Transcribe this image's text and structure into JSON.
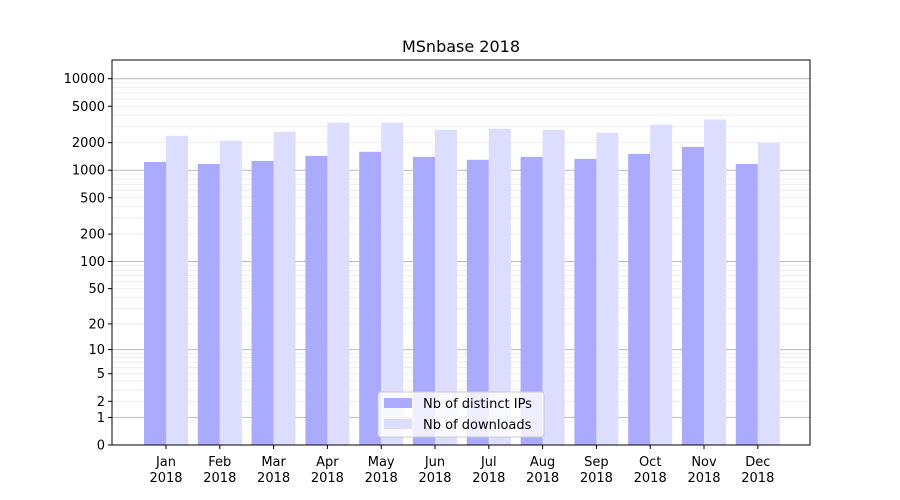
{
  "chart_data": {
    "type": "bar",
    "title": "MSnbase 2018",
    "xlabel": "",
    "ylabel": "",
    "yscale": "symlog (log10(1+y))",
    "ylim": [
      0,
      16000
    ],
    "grid": true,
    "legend_placement": "bottom-center",
    "categories": [
      "Jan\n2018",
      "Feb\n2018",
      "Mar\n2018",
      "Apr\n2018",
      "May\n2018",
      "Jun\n2018",
      "Jul\n2018",
      "Aug\n2018",
      "Sep\n2018",
      "Oct\n2018",
      "Nov\n2018",
      "Dec\n2018"
    ],
    "y_ticks": [
      0,
      1,
      2,
      5,
      10,
      20,
      50,
      100,
      200,
      500,
      1000,
      2000,
      5000,
      10000
    ],
    "series": [
      {
        "name": "Nb of distinct IPs",
        "color": "#aaaaff",
        "values": [
          1230,
          1170,
          1265,
          1435,
          1590,
          1400,
          1300,
          1400,
          1330,
          1510,
          1800,
          1170
        ]
      },
      {
        "name": "Nb of downloads",
        "color": "#ddddff",
        "values": [
          2380,
          2100,
          2635,
          3310,
          3310,
          2770,
          2845,
          2770,
          2570,
          3150,
          3570,
          2000
        ]
      }
    ]
  }
}
